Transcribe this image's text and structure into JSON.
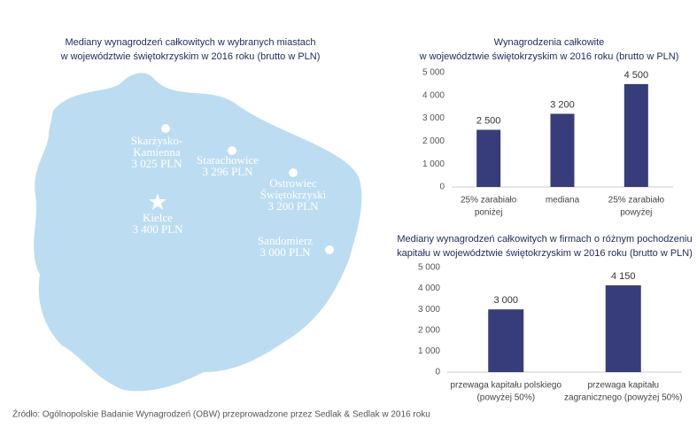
{
  "map": {
    "title": [
      "Mediany wynagrodzeń całkowitych w wybranych miastach",
      "w województwie świętokrzyskim w 2016 roku (brutto w PLN)"
    ],
    "cities": [
      {
        "name": [
          "Skarżysko-",
          "Kamienna"
        ],
        "value_label": "3 025 PLN"
      },
      {
        "name": [
          "Starachowice"
        ],
        "value_label": "3 296 PLN"
      },
      {
        "name": [
          "Ostrowiec",
          "Świętokrzyski"
        ],
        "value_label": "3 200 PLN"
      },
      {
        "name": [
          "Kielce"
        ],
        "value_label": "3 400 PLN"
      },
      {
        "name": [
          "Sandomierz"
        ],
        "value_label": "3 000 PLN"
      }
    ]
  },
  "chart_data": [
    {
      "type": "bar",
      "title": [
        "Wynagrodzenia całkowite",
        "w województwie świętokrzyskim w 2016 roku (brutto w PLN)"
      ],
      "categories": [
        [
          "25% zarabiało",
          "poniżej"
        ],
        [
          "mediana"
        ],
        [
          "25% zarabiało",
          "powyżej"
        ]
      ],
      "values": [
        2500,
        3200,
        4500
      ],
      "value_labels": [
        "2 500",
        "3 200",
        "4 500"
      ],
      "color": "#363d7a",
      "ylim": [
        0,
        5000
      ],
      "yticks": [
        0,
        {
          "value": 1000,
          "label": "1 000"
        },
        {
          "value": 2000,
          "label": "2 000"
        },
        {
          "value": 3000,
          "label": "3 000"
        },
        {
          "value": 4000,
          "label": "4 000"
        },
        {
          "value": 5000,
          "label": "5 000"
        }
      ]
    },
    {
      "type": "bar",
      "title": [
        "Mediany wynagrodzeń  całkowitych w firmach o różnym pochodzeniu",
        "kapitału w województwie świętokrzyskim w 2016 roku (brutto w PLN)"
      ],
      "categories": [
        [
          "przewaga kapitału polskiego",
          "(powyżej 50%)"
        ],
        [
          "przewaga kapitału",
          "zagranicznego (powyżej 50%)"
        ]
      ],
      "values": [
        3000,
        4150
      ],
      "value_labels": [
        "3 000",
        "4 150"
      ],
      "color": "#363d7a",
      "ylim": [
        0,
        5000
      ],
      "yticks": [
        0,
        {
          "value": 1000,
          "label": "1 000"
        },
        {
          "value": 2000,
          "label": "2 000"
        },
        {
          "value": 3000,
          "label": "3 000"
        },
        {
          "value": 4000,
          "label": "4 000"
        },
        {
          "value": 5000,
          "label": "5 000"
        }
      ]
    }
  ],
  "source": "Źródło: Ogólnopolskie Badanie Wynagrodzeń (OBW) przeprowadzone przez Sedlak & Sedlak w 2016 roku"
}
